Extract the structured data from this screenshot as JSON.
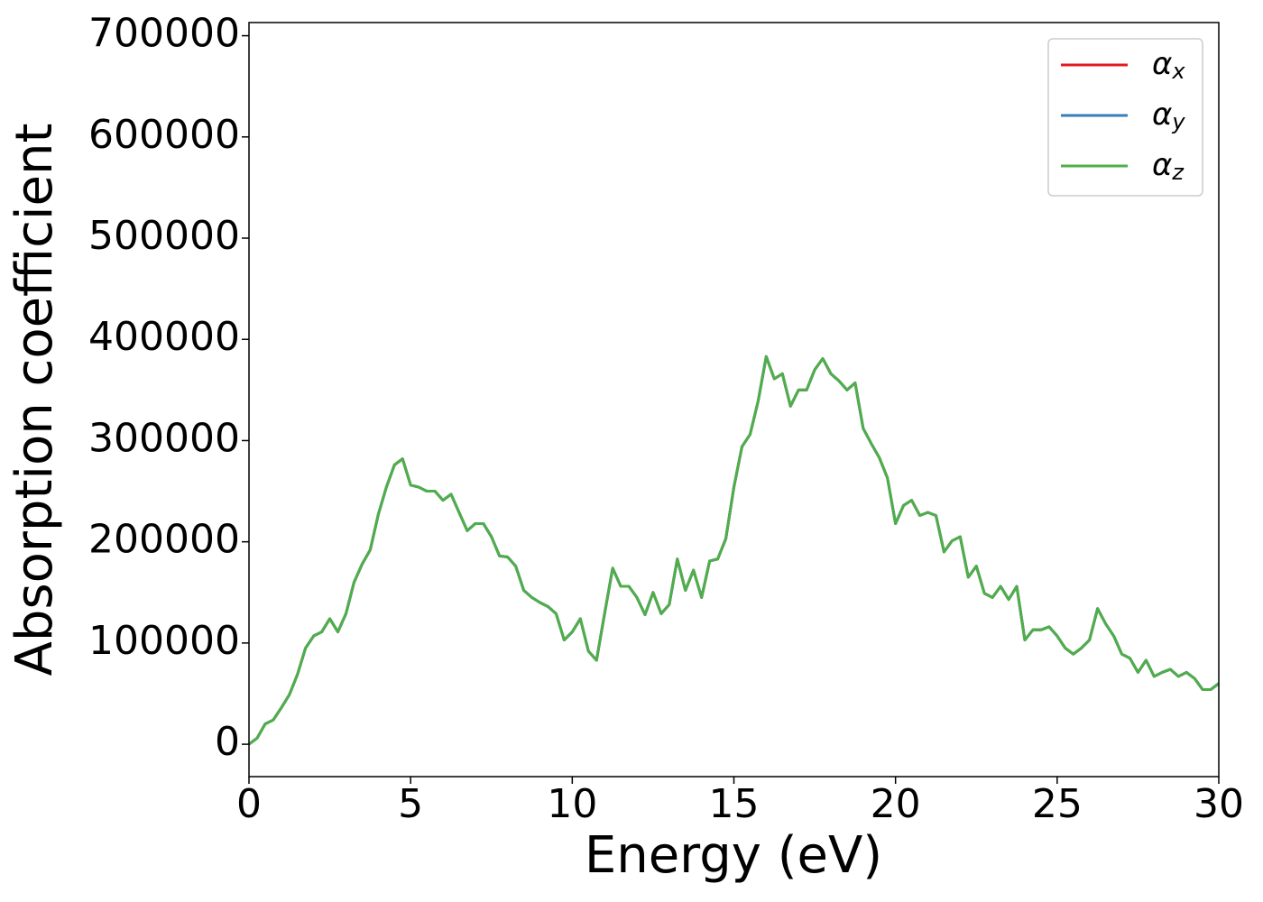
{
  "chart_data": {
    "type": "line",
    "xlabel": "Energy (eV)",
    "ylabel": "Absorption coefficient",
    "x": [
      0,
      0.25,
      0.5,
      0.75,
      1,
      1.25,
      1.5,
      1.75,
      2,
      2.25,
      2.5,
      2.75,
      3,
      3.25,
      3.5,
      3.75,
      4,
      4.25,
      4.5,
      4.75,
      5,
      5.25,
      5.5,
      5.75,
      6,
      6.25,
      6.5,
      6.75,
      7,
      7.25,
      7.5,
      7.75,
      8,
      8.25,
      8.5,
      8.75,
      9,
      9.25,
      9.5,
      9.75,
      10,
      10.25,
      10.5,
      10.75,
      11,
      11.25,
      11.5,
      11.75,
      12,
      12.25,
      12.5,
      12.75,
      13,
      13.25,
      13.5,
      13.75,
      14,
      14.25,
      14.5,
      14.75,
      15,
      15.25,
      15.5,
      15.75,
      16,
      16.25,
      16.5,
      16.75,
      17,
      17.25,
      17.5,
      17.75,
      18,
      18.25,
      18.5,
      18.75,
      19,
      19.25,
      19.5,
      19.75,
      20,
      20.25,
      20.5,
      20.75,
      21,
      21.25,
      21.5,
      21.75,
      22,
      22.25,
      22.5,
      22.75,
      23,
      23.25,
      23.5,
      23.75,
      24,
      24.25,
      24.5,
      24.75,
      25,
      25.25,
      25.5,
      25.75,
      26,
      26.25,
      26.5,
      26.75,
      27,
      27.25,
      27.5,
      27.75,
      28,
      28.25,
      28.5,
      28.75,
      29,
      29.25,
      29.5,
      29.75,
      30
    ],
    "series": [
      {
        "name": "αx",
        "color": "#e41a1c",
        "values": [
          0,
          6000,
          20000,
          24000,
          36000,
          49000,
          69000,
          95000,
          107000,
          111000,
          124000,
          111000,
          129000,
          160000,
          178000,
          192000,
          227000,
          254000,
          276000,
          282000,
          256000,
          254000,
          250000,
          250000,
          241000,
          247000,
          229000,
          211000,
          218000,
          218000,
          205000,
          186000,
          185000,
          176000,
          152000,
          145000,
          140000,
          136000,
          129000,
          103000,
          111000,
          124000,
          92000,
          83000,
          129000,
          174000,
          156000,
          156000,
          145000,
          128000,
          150000,
          129000,
          138000,
          183000,
          152000,
          172000,
          145000,
          181000,
          183000,
          203000,
          254000,
          294000,
          306000,
          339000,
          383000,
          361000,
          366000,
          334000,
          350000,
          350000,
          370000,
          381000,
          366000,
          359000,
          350000,
          357000,
          312000,
          297000,
          283000,
          263000,
          218000,
          236000,
          241000,
          226000,
          229000,
          226000,
          190000,
          201000,
          205000,
          165000,
          176000,
          149000,
          145000,
          156000,
          143000,
          156000,
          103000,
          113000,
          113000,
          116000,
          107000,
          95000,
          89000,
          95000,
          103000,
          134000,
          119000,
          107000,
          89000,
          85000,
          71000,
          83000,
          67000,
          71000,
          74000,
          67000,
          71000,
          65000,
          54000,
          54000,
          60000
        ]
      },
      {
        "name": "αy",
        "color": "#377eb8",
        "values": [
          0,
          6000,
          20000,
          24000,
          36000,
          49000,
          69000,
          95000,
          107000,
          111000,
          124000,
          111000,
          129000,
          160000,
          178000,
          192000,
          227000,
          254000,
          276000,
          282000,
          256000,
          254000,
          250000,
          250000,
          241000,
          247000,
          229000,
          211000,
          218000,
          218000,
          205000,
          186000,
          185000,
          176000,
          152000,
          145000,
          140000,
          136000,
          129000,
          103000,
          111000,
          124000,
          92000,
          83000,
          129000,
          174000,
          156000,
          156000,
          145000,
          128000,
          150000,
          129000,
          138000,
          183000,
          152000,
          172000,
          145000,
          181000,
          183000,
          203000,
          254000,
          294000,
          306000,
          339000,
          383000,
          361000,
          366000,
          334000,
          350000,
          350000,
          370000,
          381000,
          366000,
          359000,
          350000,
          357000,
          312000,
          297000,
          283000,
          263000,
          218000,
          236000,
          241000,
          226000,
          229000,
          226000,
          190000,
          201000,
          205000,
          165000,
          176000,
          149000,
          145000,
          156000,
          143000,
          156000,
          103000,
          113000,
          113000,
          116000,
          107000,
          95000,
          89000,
          95000,
          103000,
          134000,
          119000,
          107000,
          89000,
          85000,
          71000,
          83000,
          67000,
          71000,
          74000,
          67000,
          71000,
          65000,
          54000,
          54000,
          60000
        ]
      },
      {
        "name": "αz",
        "color": "#4daf4a",
        "values": [
          0,
          6000,
          20000,
          24000,
          36000,
          49000,
          69000,
          95000,
          107000,
          111000,
          124000,
          111000,
          129000,
          160000,
          178000,
          192000,
          227000,
          254000,
          276000,
          282000,
          256000,
          254000,
          250000,
          250000,
          241000,
          247000,
          229000,
          211000,
          218000,
          218000,
          205000,
          186000,
          185000,
          176000,
          152000,
          145000,
          140000,
          136000,
          129000,
          103000,
          111000,
          124000,
          92000,
          83000,
          129000,
          174000,
          156000,
          156000,
          145000,
          128000,
          150000,
          129000,
          138000,
          183000,
          152000,
          172000,
          145000,
          181000,
          183000,
          203000,
          254000,
          294000,
          306000,
          339000,
          383000,
          361000,
          366000,
          334000,
          350000,
          350000,
          370000,
          381000,
          366000,
          359000,
          350000,
          357000,
          312000,
          297000,
          283000,
          263000,
          218000,
          236000,
          241000,
          226000,
          229000,
          226000,
          190000,
          201000,
          205000,
          165000,
          176000,
          149000,
          145000,
          156000,
          143000,
          156000,
          103000,
          113000,
          113000,
          116000,
          107000,
          95000,
          89000,
          95000,
          103000,
          134000,
          119000,
          107000,
          89000,
          85000,
          71000,
          83000,
          67000,
          71000,
          74000,
          67000,
          71000,
          65000,
          54000,
          54000,
          60000
        ]
      }
    ],
    "xlim": [
      0,
      30
    ],
    "xticks": [
      0,
      5,
      10,
      15,
      20,
      25,
      30
    ],
    "ylim": [
      -32000,
      713000
    ],
    "yticks": [
      0,
      100000,
      200000,
      300000,
      400000,
      500000,
      600000,
      700000
    ],
    "grid": false,
    "legend": "upper right"
  }
}
